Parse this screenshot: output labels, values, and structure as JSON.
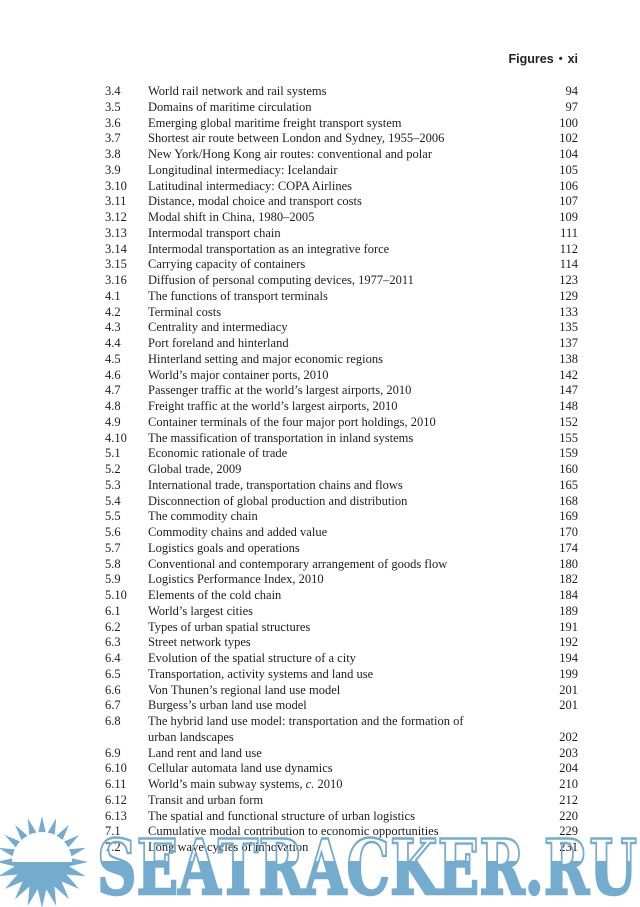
{
  "header": {
    "title": "Figures",
    "separator": "•",
    "page_number": "xi"
  },
  "watermark": {
    "text": "SEATRACKER.RU",
    "color": "#74accf",
    "icon": "sun-logo"
  },
  "figures": [
    {
      "num": "3.4",
      "title": "World rail network and rail systems",
      "page": "94"
    },
    {
      "num": "3.5",
      "title": "Domains of maritime circulation",
      "page": "97"
    },
    {
      "num": "3.6",
      "title": "Emerging global maritime freight transport system",
      "page": "100"
    },
    {
      "num": "3.7",
      "title": "Shortest air route between London and Sydney, 1955–2006",
      "page": "102"
    },
    {
      "num": "3.8",
      "title": "New York/Hong Kong air routes: conventional and polar",
      "page": "104"
    },
    {
      "num": "3.9",
      "title": "Longitudinal intermediacy: Icelandair",
      "page": "105"
    },
    {
      "num": "3.10",
      "title": "Latitudinal intermediacy: COPA Airlines",
      "page": "106"
    },
    {
      "num": "3.11",
      "title": "Distance, modal choice and transport costs",
      "page": "107"
    },
    {
      "num": "3.12",
      "title": "Modal shift in China, 1980–2005",
      "page": "109"
    },
    {
      "num": "3.13",
      "title": "Intermodal transport chain",
      "page": "111"
    },
    {
      "num": "3.14",
      "title": "Intermodal transportation as an integrative force",
      "page": "112"
    },
    {
      "num": "3.15",
      "title": "Carrying capacity of containers",
      "page": "114"
    },
    {
      "num": "3.16",
      "title": "Diffusion of personal computing devices, 1977–2011",
      "page": "123"
    },
    {
      "num": "4.1",
      "title": "The functions of transport terminals",
      "page": "129"
    },
    {
      "num": "4.2",
      "title": "Terminal costs",
      "page": "133"
    },
    {
      "num": "4.3",
      "title": "Centrality and intermediacy",
      "page": "135"
    },
    {
      "num": "4.4",
      "title": "Port foreland and hinterland",
      "page": "137"
    },
    {
      "num": "4.5",
      "title": "Hinterland setting and major economic regions",
      "page": "138"
    },
    {
      "num": "4.6",
      "title": "World’s major container ports, 2010",
      "page": "142"
    },
    {
      "num": "4.7",
      "title": "Passenger traffic at the world’s largest airports, 2010",
      "page": "147"
    },
    {
      "num": "4.8",
      "title": "Freight traffic at the world’s largest airports, 2010",
      "page": "148"
    },
    {
      "num": "4.9",
      "title": "Container terminals of the four major port holdings, 2010",
      "page": "152"
    },
    {
      "num": "4.10",
      "title": "The massification of transportation in inland systems",
      "page": "155"
    },
    {
      "num": "5.1",
      "title": "Economic rationale of trade",
      "page": "159"
    },
    {
      "num": "5.2",
      "title": "Global trade, 2009",
      "page": "160"
    },
    {
      "num": "5.3",
      "title": "International trade, transportation chains and flows",
      "page": "165"
    },
    {
      "num": "5.4",
      "title": "Disconnection of global production and distribution",
      "page": "168"
    },
    {
      "num": "5.5",
      "title": "The commodity chain",
      "page": "169"
    },
    {
      "num": "5.6",
      "title": "Commodity chains and added value",
      "page": "170"
    },
    {
      "num": "5.7",
      "title": "Logistics goals and operations",
      "page": "174"
    },
    {
      "num": "5.8",
      "title": "Conventional and contemporary arrangement of goods flow",
      "page": "180"
    },
    {
      "num": "5.9",
      "title": "Logistics Performance Index, 2010",
      "page": "182"
    },
    {
      "num": "5.10",
      "title": "Elements of the cold chain",
      "page": "184"
    },
    {
      "num": "6.1",
      "title": "World’s largest cities",
      "page": "189"
    },
    {
      "num": "6.2",
      "title": "Types of urban spatial structures",
      "page": "191"
    },
    {
      "num": "6.3",
      "title": "Street network types",
      "page": "192"
    },
    {
      "num": "6.4",
      "title": "Evolution of the spatial structure of a city",
      "page": "194"
    },
    {
      "num": "6.5",
      "title": "Transportation, activity systems and land use",
      "page": "199"
    },
    {
      "num": "6.6",
      "title": "Von Thunen’s regional land use model",
      "page": "201"
    },
    {
      "num": "6.7",
      "title": "Burgess’s urban land use model",
      "page": "201"
    },
    {
      "num": "6.8",
      "title": "The hybrid land use model: transportation and the formation of",
      "title2": "urban landscapes",
      "page": "202"
    },
    {
      "num": "6.9",
      "title": "Land rent and land use",
      "page": "203"
    },
    {
      "num": "6.10",
      "title": "Cellular automata land use dynamics",
      "page": "204"
    },
    {
      "num": "6.11",
      "parts": [
        {
          "t": "World’s main subway systems, "
        },
        {
          "t": "c.",
          "i": true
        },
        {
          "t": " 2010"
        }
      ],
      "page": "210"
    },
    {
      "num": "6.12",
      "title": "Transit and urban form",
      "page": "212"
    },
    {
      "num": "6.13",
      "title": "The spatial and functional structure of urban logistics",
      "page": "220"
    },
    {
      "num": "7.1",
      "title": "Cumulative modal contribution to economic opportunities",
      "page": "229"
    },
    {
      "num": "7.2",
      "title": "Long wave cycles of innovation",
      "page": "231"
    }
  ]
}
